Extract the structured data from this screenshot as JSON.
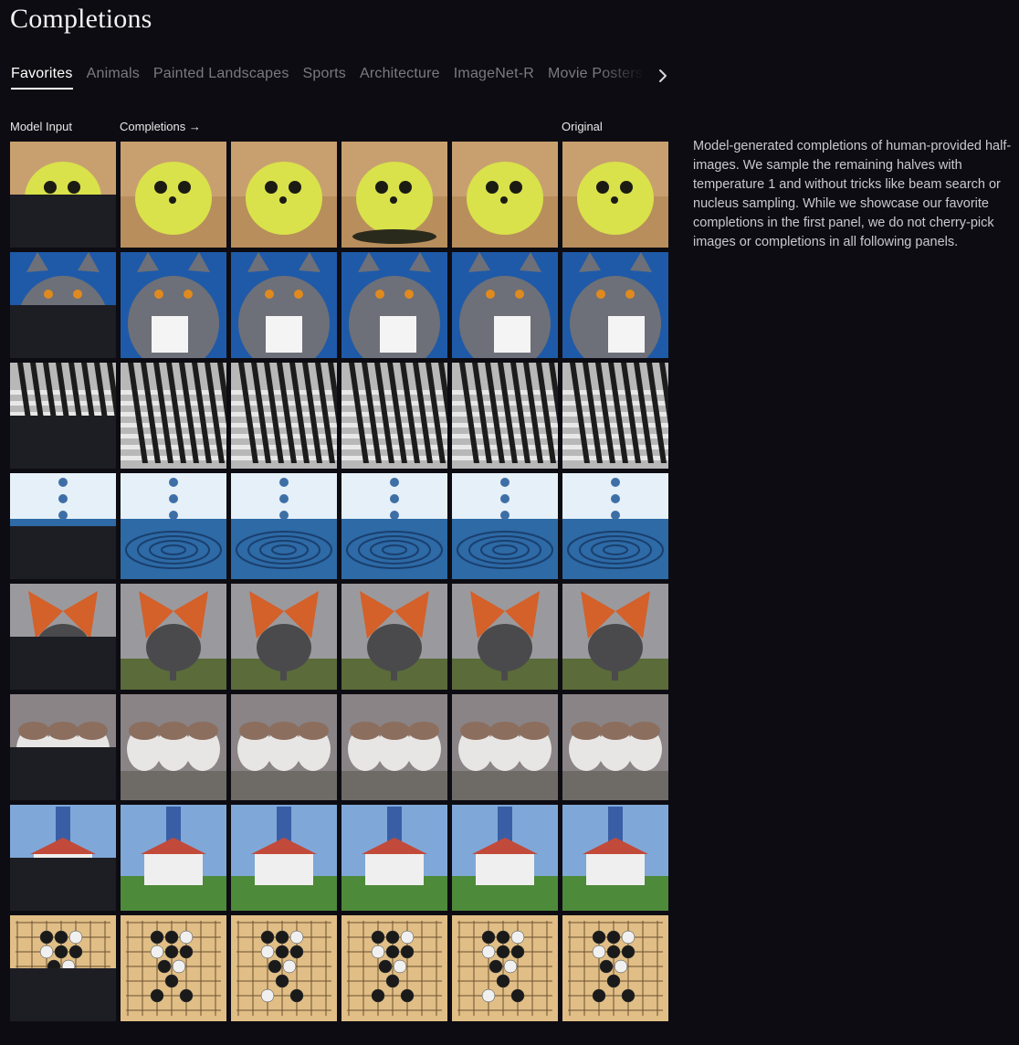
{
  "page": {
    "title": "Completions",
    "description": "Model-generated completions of human-provided half-images. We sample the remaining halves with temperature 1 and without tricks like beam search or nucleus sampling. While we showcase our favorite completions in the first panel, we do not cherry-pick images or completions in all following panels."
  },
  "tabs": [
    {
      "label": "Favorites",
      "active": true
    },
    {
      "label": "Animals",
      "active": false
    },
    {
      "label": "Painted Landscapes",
      "active": false
    },
    {
      "label": "Sports",
      "active": false
    },
    {
      "label": "Architecture",
      "active": false
    },
    {
      "label": "ImageNet-R",
      "active": false
    },
    {
      "label": "Movie Posters",
      "active": false
    }
  ],
  "tab_next_icon": "chevron-right-icon",
  "columns": {
    "model_input": "Model Input",
    "completions": "Completions",
    "completions_arrow": "→",
    "original": "Original"
  },
  "colors": {
    "background": "#0d0c12",
    "masked_half": "#1d1d24",
    "text": "#e8e8ea",
    "muted_tab": "#7a7a82"
  },
  "rows": [
    {
      "subject": "seal",
      "kind": "seal",
      "sky": "#c8a070",
      "ground": "#b88e5c",
      "accent": "#d9e24a"
    },
    {
      "subject": "cat",
      "kind": "cat",
      "sky": "#1f5aa8",
      "ground": "#1f5aa8",
      "accent": "#6d7078"
    },
    {
      "subject": "shadows",
      "kind": "shadows",
      "sky": "#b8b8b8",
      "ground": "#d0d0d0",
      "accent": "#1c1c1c"
    },
    {
      "subject": "water-drop",
      "kind": "water",
      "sky": "#e6f0f8",
      "ground": "#2d6aa6",
      "accent": "#1a3f6e"
    },
    {
      "subject": "butterfly-elephant",
      "kind": "elephant",
      "sky": "#9a9a9e",
      "ground": "#5b6b3a",
      "accent": "#4a4a4c"
    },
    {
      "subject": "birds",
      "kind": "birds",
      "sky": "#8a8486",
      "ground": "#6e6a66",
      "accent": "#e8e6e4"
    },
    {
      "subject": "lighthouse",
      "kind": "lighthouse",
      "sky": "#7fa8d8",
      "ground": "#4d8a3a",
      "accent": "#efefef"
    },
    {
      "subject": "go-board",
      "kind": "go",
      "sky": "#e0be86",
      "ground": "#e0be86",
      "accent": "#1a1a1a"
    }
  ]
}
